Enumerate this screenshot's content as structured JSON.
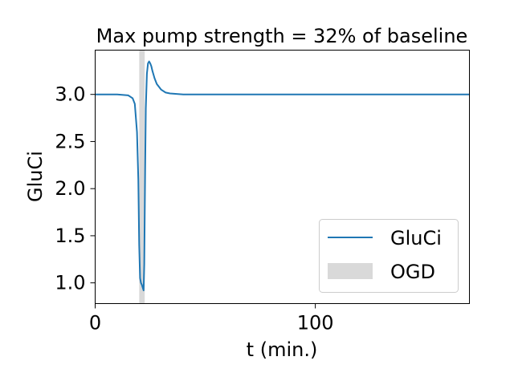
{
  "chart_data": {
    "type": "line",
    "title": "Max pump strength $=$ 32% of baseline",
    "title_display": "Max pump strength = 32% of baseline",
    "xlabel": "t (min.)",
    "ylabel": "GluCi",
    "xlim": [
      0,
      170
    ],
    "ylim": [
      0.78,
      3.47
    ],
    "x_ticks": [
      0,
      100
    ],
    "x_tick_labels": [
      "0",
      "100"
    ],
    "y_ticks": [
      1.0,
      1.5,
      2.0,
      2.5,
      3.0
    ],
    "y_tick_labels": [
      "1.0",
      "1.5",
      "2.0",
      "2.5",
      "3.0"
    ],
    "grid": false,
    "legend_position": "lower-right",
    "shaded_regions": [
      {
        "name": "OGD",
        "x_start": 20,
        "x_end": 22.5,
        "color": "#d9d9d9"
      }
    ],
    "series": [
      {
        "name": "GluCi",
        "color": "#1f77b4",
        "x": [
          0,
          10,
          15,
          17,
          18,
          19,
          19.6,
          20,
          20.4,
          20.8,
          21.2,
          21.6,
          22,
          22.3,
          22.7,
          23,
          23.5,
          24,
          24.5,
          25,
          25.5,
          26,
          27,
          28,
          30,
          32,
          34,
          37,
          40,
          45,
          50,
          60,
          80,
          100,
          120,
          140,
          170
        ],
        "y": [
          3.0,
          3.0,
          2.99,
          2.96,
          2.9,
          2.6,
          2.1,
          1.4,
          1.05,
          1.0,
          0.98,
          0.95,
          0.92,
          1.2,
          2.2,
          2.85,
          3.22,
          3.33,
          3.35,
          3.33,
          3.3,
          3.25,
          3.17,
          3.11,
          3.05,
          3.02,
          3.01,
          3.005,
          3.0,
          3.0,
          3.0,
          3.0,
          3.0,
          3.0,
          3.0,
          3.0,
          3.0
        ]
      }
    ],
    "legend": [
      {
        "label": "GluCi",
        "type": "line",
        "color": "#1f77b4"
      },
      {
        "label": "OGD",
        "type": "patch",
        "color": "#d9d9d9"
      }
    ]
  }
}
